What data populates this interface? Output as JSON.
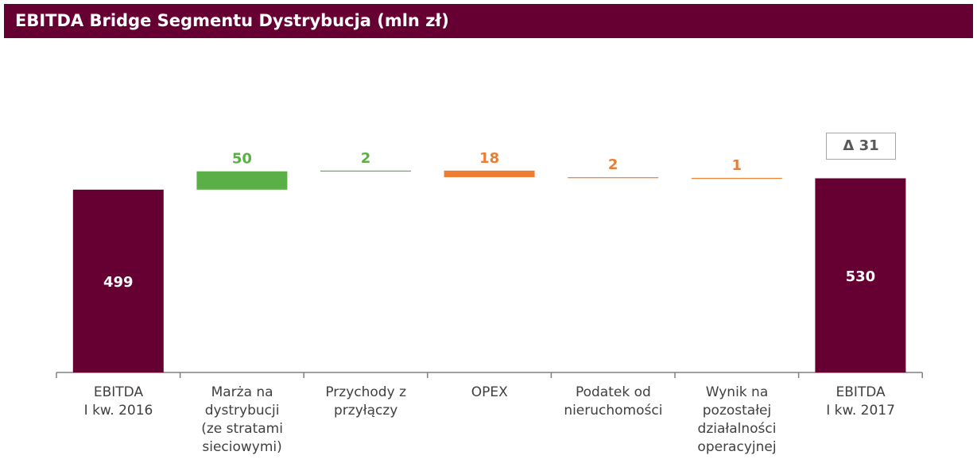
{
  "header": {
    "title": "EBITDA Bridge Segmentu Dystrybucja (mln zł)"
  },
  "chart_data": {
    "type": "waterfall",
    "title": "EBITDA Bridge Segmentu Dystrybucja (mln zł)",
    "categories": [
      "EBITDA\nI kw. 2016",
      "Marża na\ndystrybucji\n(ze stratami\nsieciowymi)",
      "Przychody z\nprzyłączy",
      "OPEX",
      "Podatek od\nnieruchomości",
      "Wynik na\npozostałej\ndziałalności\noperacyjnej",
      "EBITDA\nI kw. 2017"
    ],
    "values": [
      499,
      50,
      2,
      -18,
      -2,
      -1,
      530
    ],
    "labels": [
      "499",
      "50",
      "2",
      "18",
      "2",
      "1",
      "530"
    ],
    "kinds": [
      "total",
      "increase",
      "increase",
      "decrease",
      "decrease",
      "decrease",
      "total"
    ],
    "delta_label": "Δ 31",
    "colors": {
      "total": "#660033",
      "increase": "#5aaf46",
      "decrease": "#ed7d31",
      "title_bar": "#660033"
    }
  }
}
